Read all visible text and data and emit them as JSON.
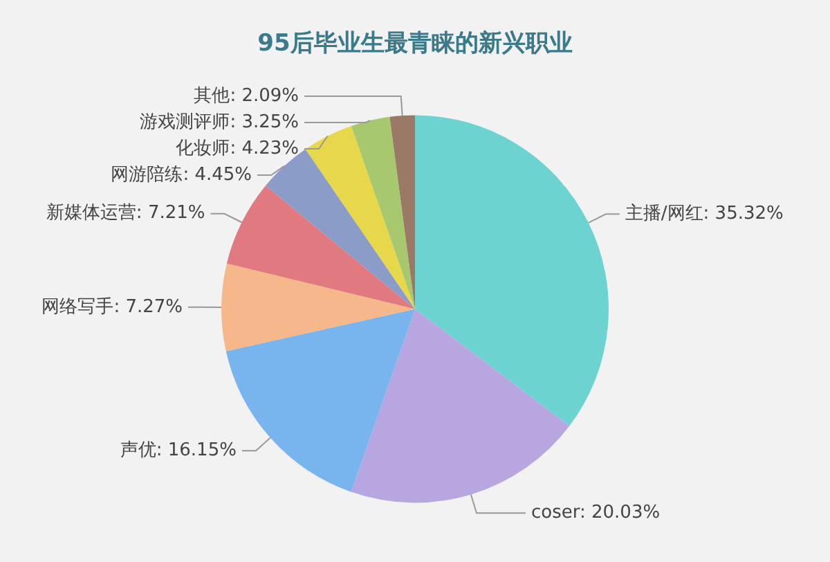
{
  "chart_data": {
    "type": "pie",
    "title": "95后毕业生最青睐的新兴职业",
    "categories": [
      "主播/网红",
      "coser",
      "声优",
      "网络写手",
      "新媒体运营",
      "网游陪练",
      "化妆师",
      "游戏测评师",
      "其他"
    ],
    "values": [
      35.32,
      20.03,
      16.15,
      7.27,
      7.21,
      4.45,
      4.23,
      3.25,
      2.09
    ],
    "value_labels": [
      "35.32%",
      "20.03%",
      "16.15%",
      "7.27%",
      "7.21%",
      "4.45%",
      "4.23%",
      "3.25%",
      "2.09%"
    ],
    "colors": [
      "#6dd3d0",
      "#b8a6e0",
      "#78b4ee",
      "#f6b88a",
      "#e07a80",
      "#8c9cc8",
      "#e6d84a",
      "#a8c870",
      "#9a7a66"
    ],
    "legend": false
  }
}
